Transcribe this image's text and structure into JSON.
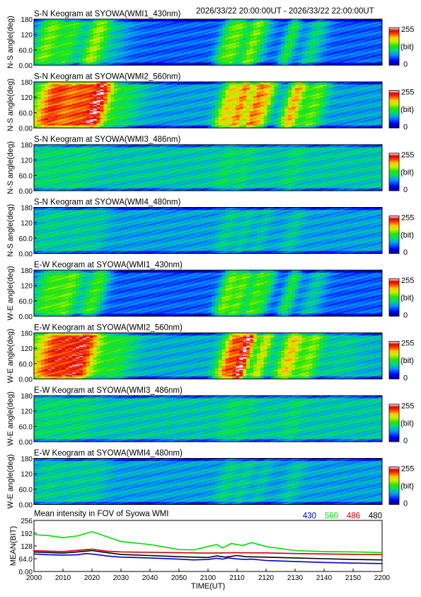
{
  "header": {
    "time_range": "2026/33/22 20:00:00UT - 2026/33/22 22:00:00UT"
  },
  "colorbar": {
    "max_label": "255",
    "unit_label": "(bit)",
    "min_label": "0"
  },
  "chart_data": [
    {
      "type": "heatmap",
      "title": "S-N Keogram at SYOWA(WMI1_430nm)",
      "ylabel": "N-S angle(deg)",
      "y_ticks": [
        "0.00",
        "60.0",
        "120",
        "180"
      ],
      "ylim": [
        0,
        180
      ],
      "colormap": "rainbow (blue-green-yellow-red-white)",
      "profile": {
        "base": 0.22,
        "features": [
          [
            3.5,
            4,
            0.35
          ],
          [
            10,
            3,
            0.25
          ],
          [
            17,
            3,
            0.35
          ],
          [
            22,
            5,
            0.12
          ],
          [
            55,
            2.5,
            0.28
          ],
          [
            58,
            2,
            0.25
          ],
          [
            62,
            2,
            0.22
          ],
          [
            64,
            3,
            0.2
          ],
          [
            73,
            2,
            0.25
          ],
          [
            80,
            3,
            0.18
          ]
        ]
      }
    },
    {
      "type": "heatmap",
      "title": "S-N Keogram at SYOWA(WMI2_560nm)",
      "ylabel": "N-S angle(deg)",
      "y_ticks": [
        "0.00",
        "60.0",
        "120",
        "180"
      ],
      "ylim": [
        0,
        180
      ],
      "colormap": "rainbow (blue-green-yellow-red-white)",
      "profile": {
        "base": 0.3,
        "features": [
          [
            5,
            6,
            0.55
          ],
          [
            13,
            4,
            0.4
          ],
          [
            18,
            3,
            0.5
          ],
          [
            24,
            6,
            0.15
          ],
          [
            55,
            2.5,
            0.4
          ],
          [
            59,
            2,
            0.45
          ],
          [
            63,
            2,
            0.45
          ],
          [
            66,
            2,
            0.35
          ],
          [
            74,
            2.5,
            0.45
          ],
          [
            80,
            3,
            0.25
          ]
        ]
      }
    },
    {
      "type": "heatmap",
      "title": "S-N Keogram at SYOWA(WMI3_486nm)",
      "ylabel": "N-S angle(deg)",
      "y_ticks": [
        "0.00",
        "60.0",
        "120",
        "180"
      ],
      "ylim": [
        0,
        180
      ],
      "colormap": "rainbow (blue-green-yellow-red-white)",
      "profile": {
        "base": 0.36,
        "features": [
          [
            4,
            6,
            0.05
          ],
          [
            13,
            4,
            0.04
          ],
          [
            55,
            2.5,
            0.06
          ],
          [
            60,
            2,
            0.05
          ],
          [
            74,
            2.5,
            0.05
          ]
        ]
      }
    },
    {
      "type": "heatmap",
      "title": "S-N Keogram at SYOWA(WMI4_480nm)",
      "ylabel": "N-S angle(deg)",
      "y_ticks": [
        "0.00",
        "60.0",
        "120",
        "180"
      ],
      "ylim": [
        0,
        180
      ],
      "colormap": "rainbow (blue-green-yellow-red-white)",
      "profile": {
        "base": 0.3,
        "features": [
          [
            4,
            6,
            0.08
          ],
          [
            13,
            4,
            0.06
          ],
          [
            18,
            3,
            0.05
          ],
          [
            55,
            2.5,
            0.08
          ],
          [
            60,
            2,
            0.07
          ],
          [
            65,
            2,
            0.06
          ],
          [
            74,
            2.5,
            0.07
          ]
        ]
      }
    },
    {
      "type": "heatmap",
      "title": "E-W Keogram at SYOWA(WMI1_430nm)",
      "ylabel": "W-E angle(deg)",
      "y_ticks": [
        "0.00",
        "60.0",
        "120",
        "180"
      ],
      "ylim": [
        0,
        180
      ],
      "colormap": "rainbow (blue-green-yellow-red-white)",
      "profile": {
        "base": 0.22,
        "features": [
          [
            4,
            5,
            0.3
          ],
          [
            10,
            3,
            0.25
          ],
          [
            17,
            3,
            0.3
          ],
          [
            55,
            2.5,
            0.35
          ],
          [
            59,
            2,
            0.3
          ],
          [
            63,
            2,
            0.28
          ],
          [
            66,
            2,
            0.22
          ],
          [
            73,
            2,
            0.25
          ],
          [
            80,
            3,
            0.15
          ]
        ]
      }
    },
    {
      "type": "heatmap",
      "title": "E-W Keogram at SYOWA(WMI2_560nm)",
      "ylabel": "W-E angle(deg)",
      "y_ticks": [
        "0.00",
        "60.0",
        "120",
        "180"
      ],
      "ylim": [
        0,
        180
      ],
      "colormap": "rainbow (blue-green-yellow-red-white)",
      "profile": {
        "base": 0.32,
        "features": [
          [
            6,
            8,
            0.55
          ],
          [
            14,
            4,
            0.35
          ],
          [
            23,
            5,
            0.15
          ],
          [
            56,
            3,
            0.5
          ],
          [
            60,
            2,
            0.55
          ],
          [
            65,
            2,
            0.35
          ],
          [
            73,
            3,
            0.4
          ],
          [
            79,
            2.5,
            0.25
          ],
          [
            88,
            6,
            0.06
          ]
        ]
      }
    },
    {
      "type": "heatmap",
      "title": "E-W Keogram at SYOWA(WMI3_486nm)",
      "ylabel": "W-E angle(deg)",
      "y_ticks": [
        "0.00",
        "60.0",
        "120",
        "180"
      ],
      "ylim": [
        0,
        180
      ],
      "colormap": "rainbow (blue-green-yellow-red-white)",
      "profile": {
        "base": 0.36,
        "features": [
          [
            4,
            6,
            0.05
          ],
          [
            13,
            4,
            0.04
          ],
          [
            56,
            2.5,
            0.06
          ],
          [
            60,
            2,
            0.05
          ],
          [
            74,
            2.5,
            0.05
          ]
        ]
      }
    },
    {
      "type": "heatmap",
      "title": "E-W Keogram at SYOWA(WMI4_480nm)",
      "ylabel": "W-E angle(deg)",
      "y_ticks": [
        "0.00",
        "60.0",
        "120",
        "180"
      ],
      "ylim": [
        0,
        180
      ],
      "colormap": "rainbow (blue-green-yellow-red-white)",
      "profile": {
        "base": 0.3,
        "features": [
          [
            4,
            6,
            0.08
          ],
          [
            13,
            4,
            0.06
          ],
          [
            18,
            3,
            0.05
          ],
          [
            55,
            2.5,
            0.09
          ],
          [
            60,
            2,
            0.08
          ],
          [
            65,
            2,
            0.06
          ],
          [
            74,
            2.5,
            0.07
          ]
        ]
      }
    },
    {
      "type": "line",
      "title": "Mean intensity in FOV of Syowa WMI",
      "xlabel": "TIME(UT)",
      "ylabel": "MEAN(BIT)",
      "x_ticks": [
        "2000",
        "2010",
        "2020",
        "2030",
        "2040",
        "2050",
        "2100",
        "2110",
        "2120",
        "2130",
        "2140",
        "2150",
        "2200"
      ],
      "y_ticks": [
        "0.00",
        "64.0",
        "128",
        "192",
        "256"
      ],
      "ylim": [
        0,
        256
      ],
      "xlim": [
        0,
        120
      ],
      "x_unit": "minutes after 20:00 UT",
      "series": [
        {
          "name": "430",
          "color": "#0000cc",
          "x": [
            0,
            5,
            10,
            15,
            18,
            21,
            25,
            30,
            40,
            50,
            55,
            60,
            63,
            65,
            67,
            70,
            73,
            75,
            80,
            90,
            100,
            110,
            120
          ],
          "y": [
            88,
            84,
            82,
            84,
            90,
            86,
            78,
            72,
            68,
            62,
            58,
            60,
            66,
            62,
            68,
            63,
            60,
            62,
            55,
            50,
            45,
            42,
            40
          ]
        },
        {
          "name": "560",
          "color": "#00dd00",
          "x": [
            0,
            5,
            10,
            15,
            20,
            25,
            30,
            40,
            50,
            55,
            60,
            63,
            65,
            68,
            72,
            75,
            80,
            90,
            100,
            110,
            120
          ],
          "y": [
            185,
            180,
            170,
            178,
            200,
            175,
            150,
            135,
            110,
            108,
            125,
            135,
            118,
            140,
            130,
            145,
            125,
            105,
            100,
            98,
            95
          ]
        },
        {
          "name": "486",
          "color": "#cc0000",
          "x": [
            0,
            5,
            10,
            15,
            20,
            25,
            30,
            40,
            50,
            60,
            70,
            80,
            90,
            100,
            110,
            120
          ],
          "y": [
            105,
            102,
            100,
            106,
            112,
            102,
            98,
            96,
            94,
            92,
            94,
            93,
            90,
            88,
            86,
            85
          ]
        },
        {
          "name": "480",
          "color": "#000000",
          "x": [
            0,
            5,
            10,
            15,
            20,
            25,
            30,
            40,
            50,
            60,
            63,
            66,
            70,
            73,
            80,
            90,
            100,
            110,
            120
          ],
          "y": [
            98,
            95,
            92,
            98,
            105,
            95,
            85,
            80,
            74,
            70,
            78,
            72,
            80,
            74,
            72,
            68,
            64,
            60,
            58
          ]
        }
      ]
    }
  ]
}
